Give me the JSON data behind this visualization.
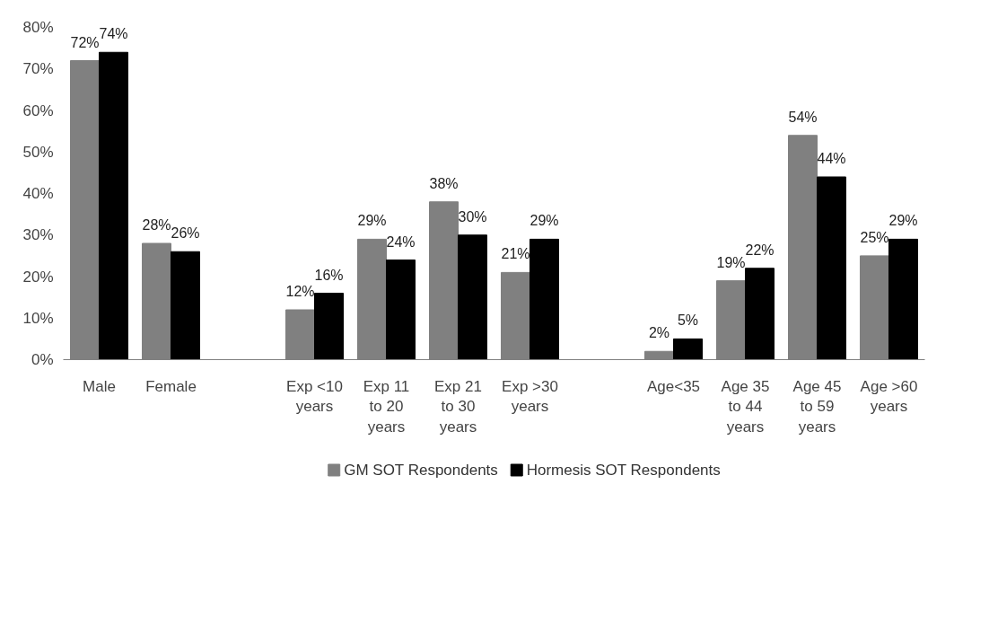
{
  "chart_data": {
    "type": "bar",
    "categories": [
      "Male",
      "Female",
      null,
      "Exp <10 years",
      "Exp 11 to 20 years",
      "Exp 21 to 30 years",
      "Exp >30 years",
      null,
      "Age<35",
      "Age 35 to 44 years",
      "Age 45 to 59 years",
      "Age >60 years"
    ],
    "series": [
      {
        "name": "GM SOT Respondents",
        "color": "#808080",
        "values": [
          72,
          28,
          null,
          12,
          29,
          38,
          21,
          null,
          2,
          19,
          54,
          25
        ],
        "value_labels": [
          "72%",
          "28%",
          null,
          "12%",
          "29%",
          "38%",
          "21%",
          null,
          "2%",
          "19%",
          "54%",
          "25%"
        ]
      },
      {
        "name": "Hormesis SOT Respondents",
        "color": "#000000",
        "values": [
          74,
          26,
          null,
          16,
          24,
          30,
          29,
          null,
          5,
          22,
          44,
          29
        ],
        "value_labels": [
          "74%",
          "26%",
          null,
          "16%",
          "24%",
          "30%",
          "29%",
          null,
          "5%",
          "22%",
          "44%",
          "29%"
        ]
      }
    ],
    "ylim": [
      0,
      80
    ],
    "yticks": [
      {
        "value": 0,
        "label": "0%"
      },
      {
        "value": 10,
        "label": "10%"
      },
      {
        "value": 20,
        "label": "20%"
      },
      {
        "value": 30,
        "label": "30%"
      },
      {
        "value": 40,
        "label": "40%"
      },
      {
        "value": 50,
        "label": "50%"
      },
      {
        "value": 60,
        "label": "60%"
      },
      {
        "value": 70,
        "label": "70%"
      },
      {
        "value": 80,
        "label": "80%"
      }
    ],
    "grid": false,
    "legend": "bottom"
  }
}
